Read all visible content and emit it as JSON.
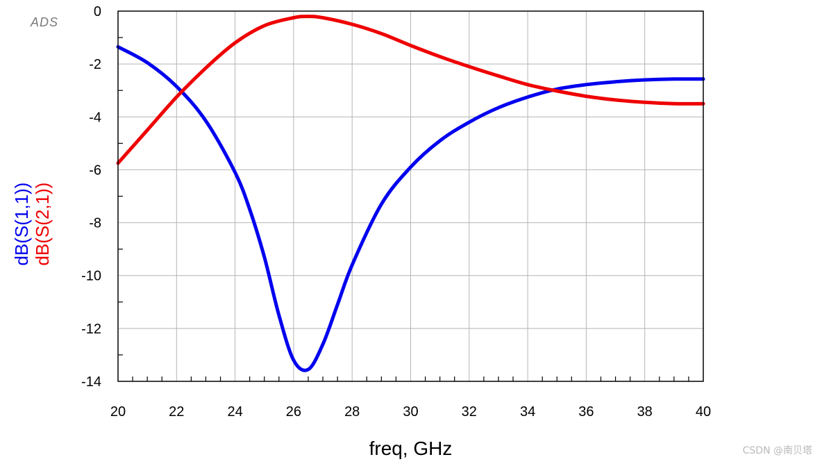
{
  "logo_text": "ADS",
  "watermark": "CSDN @南贝塔",
  "chart_data": {
    "type": "line",
    "xlabel": "freq, GHz",
    "xlim": [
      20,
      40
    ],
    "ylim": [
      -14,
      0
    ],
    "xticks": [
      20,
      22,
      24,
      26,
      28,
      30,
      32,
      34,
      36,
      38,
      40
    ],
    "yticks": [
      0,
      -2,
      -4,
      -6,
      -8,
      -10,
      -12,
      -14
    ],
    "grid": true,
    "series": [
      {
        "name": "dB(S(1,1))",
        "color": "#0000ee",
        "x": [
          20,
          21,
          22,
          23,
          24,
          24.5,
          25,
          25.5,
          26,
          26.5,
          27,
          27.5,
          28,
          29,
          30,
          31,
          32,
          33,
          34,
          35,
          36,
          37,
          38,
          39,
          40
        ],
        "y": [
          -1.35,
          -1.95,
          -2.85,
          -4.15,
          -6.1,
          -7.5,
          -9.3,
          -11.5,
          -13.2,
          -13.55,
          -12.6,
          -11.1,
          -9.6,
          -7.3,
          -5.9,
          -4.9,
          -4.2,
          -3.65,
          -3.25,
          -2.95,
          -2.78,
          -2.67,
          -2.6,
          -2.57,
          -2.57
        ]
      },
      {
        "name": "dB(S(2,1))",
        "color": "#ee0000",
        "x": [
          20,
          21,
          22,
          23,
          24,
          25,
          26,
          26.5,
          27,
          28,
          29,
          30,
          31,
          32,
          33,
          34,
          35,
          36,
          37,
          38,
          39,
          40
        ],
        "y": [
          -5.75,
          -4.5,
          -3.25,
          -2.15,
          -1.2,
          -0.55,
          -0.25,
          -0.2,
          -0.25,
          -0.5,
          -0.85,
          -1.3,
          -1.72,
          -2.1,
          -2.45,
          -2.78,
          -3.02,
          -3.22,
          -3.36,
          -3.45,
          -3.5,
          -3.5
        ]
      }
    ]
  }
}
